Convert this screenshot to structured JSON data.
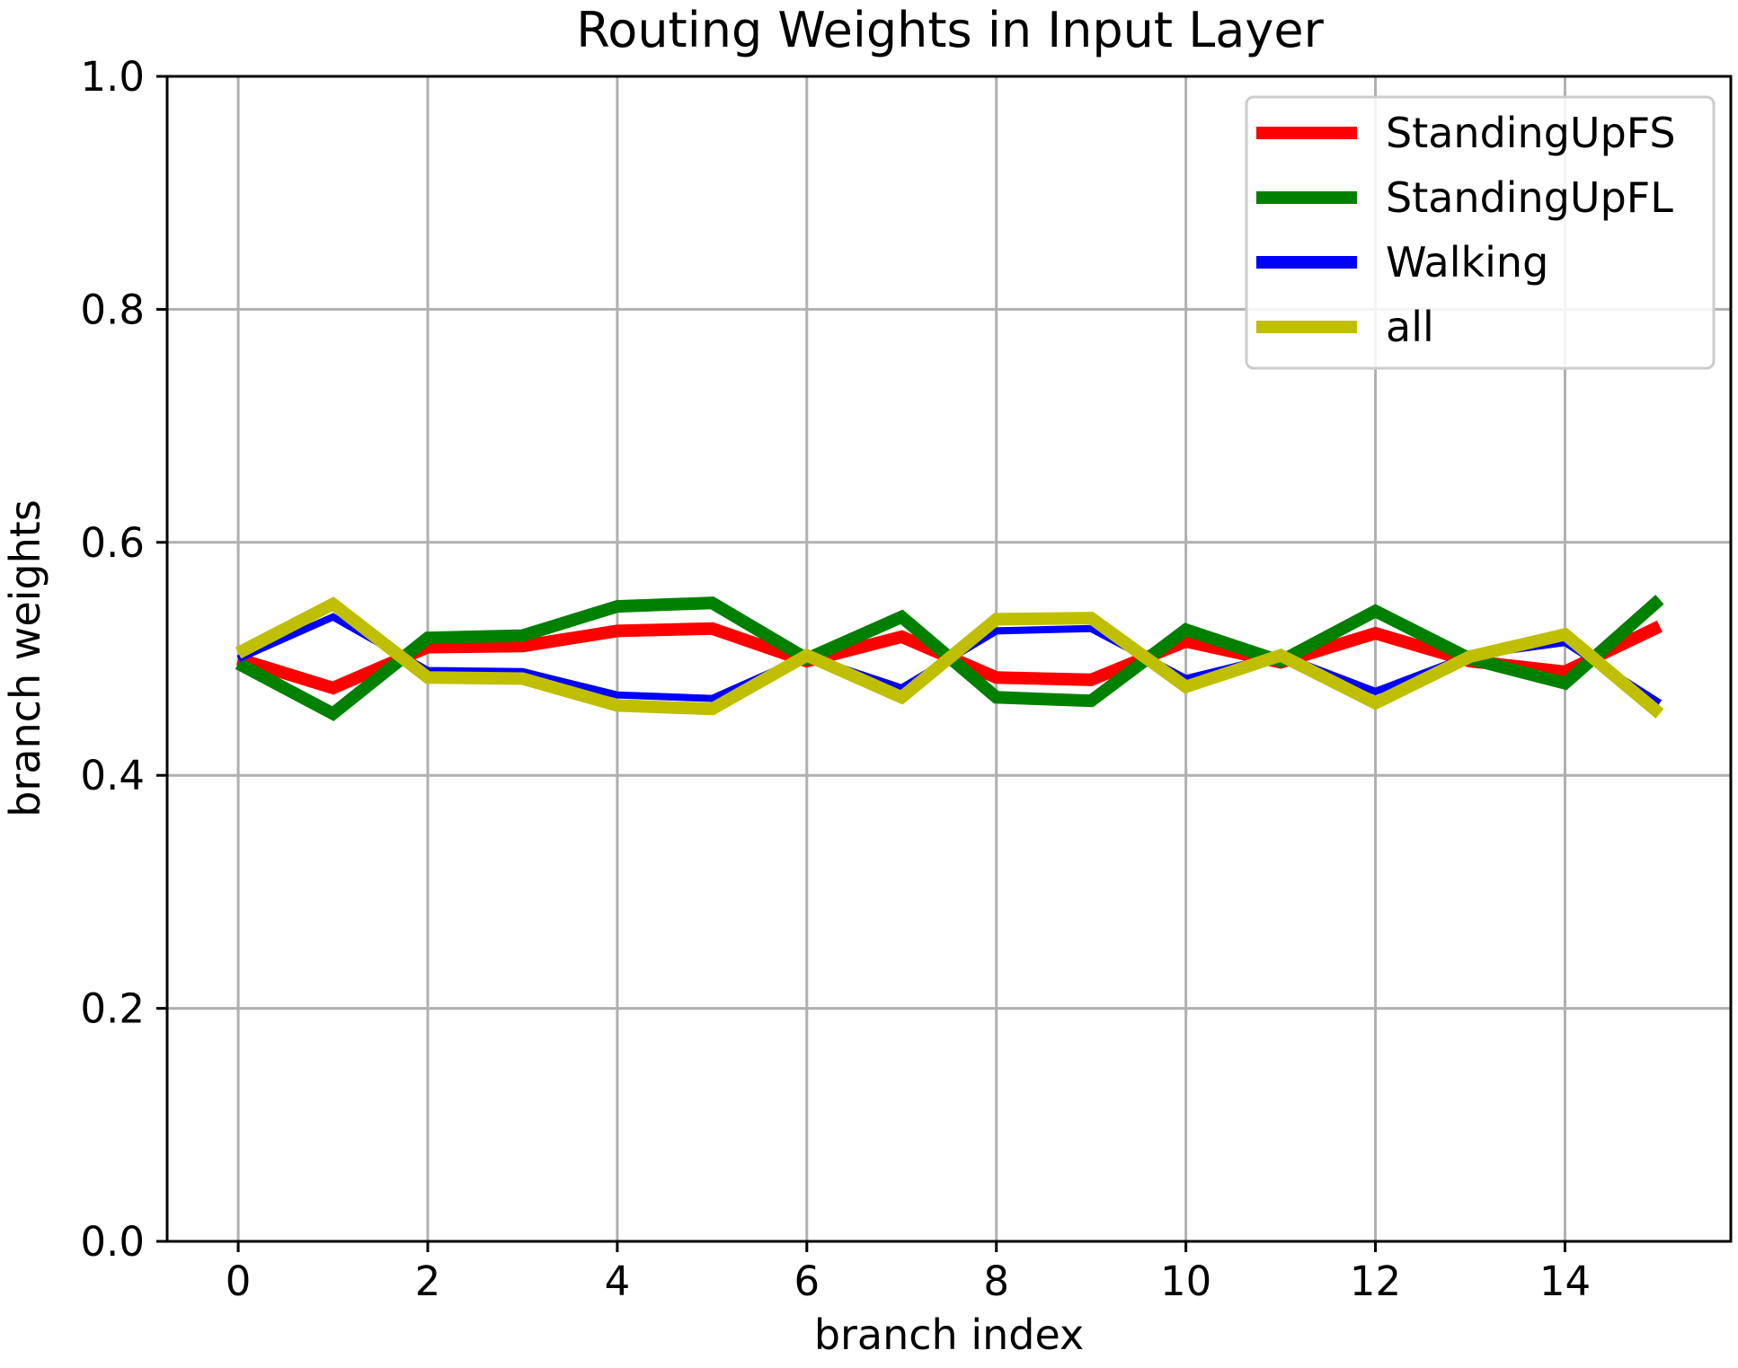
{
  "chart_data": {
    "type": "line",
    "title": "Routing Weights in Input Layer",
    "xlabel": "branch index",
    "ylabel": "branch weights",
    "xlim": [
      -0.75,
      15.75
    ],
    "ylim": [
      0.0,
      1.0
    ],
    "xticks": [
      0,
      2,
      4,
      6,
      8,
      10,
      12,
      14
    ],
    "xtick_labels": [
      "0",
      "2",
      "4",
      "6",
      "8",
      "10",
      "12",
      "14"
    ],
    "yticks": [
      0.0,
      0.2,
      0.4,
      0.6,
      0.8,
      1.0
    ],
    "ytick_labels": [
      "0.0",
      "0.2",
      "0.4",
      "0.6",
      "0.8",
      "1.0"
    ],
    "grid": true,
    "legend_position": "top-right",
    "x": [
      0,
      1,
      2,
      3,
      4,
      5,
      6,
      7,
      8,
      9,
      10,
      11,
      12,
      13,
      14,
      15
    ],
    "series": [
      {
        "name": "StandingUpFS",
        "color": "#ff0000",
        "line_width": 14,
        "values": [
          0.5,
          0.475,
          0.51,
          0.511,
          0.524,
          0.526,
          0.498,
          0.519,
          0.484,
          0.482,
          0.515,
          0.497,
          0.522,
          0.498,
          0.489,
          0.528
        ]
      },
      {
        "name": "StandingUpFL",
        "color": "#008000",
        "line_width": 14,
        "values": [
          0.496,
          0.453,
          0.518,
          0.52,
          0.545,
          0.548,
          0.5,
          0.536,
          0.467,
          0.464,
          0.525,
          0.498,
          0.541,
          0.5,
          0.479,
          0.551
        ]
      },
      {
        "name": "Walking",
        "color": "#0000ff",
        "line_width": 8,
        "values": [
          0.5,
          0.536,
          0.49,
          0.489,
          0.469,
          0.466,
          0.502,
          0.475,
          0.524,
          0.526,
          0.483,
          0.503,
          0.472,
          0.503,
          0.514,
          0.462
        ]
      },
      {
        "name": "all",
        "color": "#bfbf00",
        "line_width": 14,
        "values": [
          0.505,
          0.547,
          0.484,
          0.483,
          0.46,
          0.457,
          0.503,
          0.467,
          0.534,
          0.535,
          0.476,
          0.503,
          0.462,
          0.502,
          0.521,
          0.453
        ]
      }
    ]
  }
}
